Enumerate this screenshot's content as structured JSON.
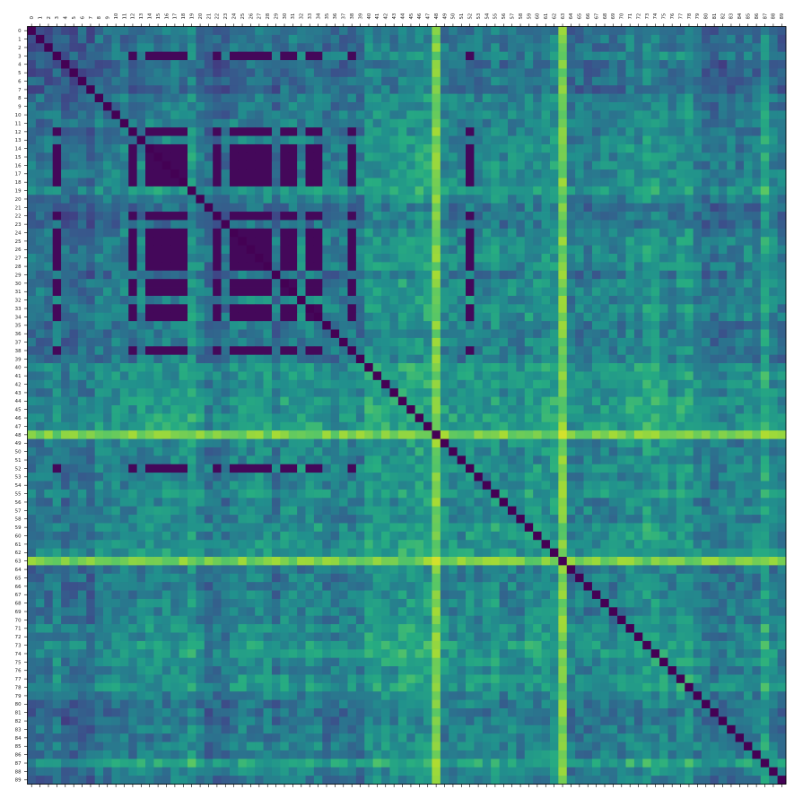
{
  "chart_data": {
    "type": "heatmap",
    "title": "",
    "xlabel": "",
    "ylabel": "",
    "colormap": "viridis",
    "grid": false,
    "legend": "none",
    "n": 90,
    "x_tick_labels": [
      "0",
      "1",
      "2",
      "3",
      "4",
      "5",
      "6",
      "7",
      "8",
      "9",
      "10",
      "11",
      "12",
      "13",
      "14",
      "15",
      "16",
      "17",
      "18",
      "19",
      "20",
      "21",
      "22",
      "23",
      "24",
      "25",
      "26",
      "27",
      "28",
      "29",
      "30",
      "31",
      "32",
      "33",
      "34",
      "35",
      "36",
      "37",
      "38",
      "39",
      "40",
      "41",
      "42",
      "43",
      "44",
      "45",
      "46",
      "47",
      "48",
      "49",
      "50",
      "51",
      "52",
      "53",
      "54",
      "55",
      "56",
      "57",
      "58",
      "59",
      "60",
      "61",
      "62",
      "63",
      "64",
      "65",
      "66",
      "67",
      "68",
      "69",
      "70",
      "71",
      "72",
      "73",
      "74",
      "75",
      "76",
      "77",
      "78",
      "79",
      "80",
      "81",
      "82",
      "83",
      "84",
      "85",
      "86",
      "87",
      "88",
      "89"
    ],
    "y_tick_labels": [
      "0",
      "1",
      "2",
      "3",
      "4",
      "5",
      "6",
      "7",
      "8",
      "9",
      "10",
      "11",
      "12",
      "13",
      "14",
      "15",
      "16",
      "17",
      "18",
      "19",
      "20",
      "21",
      "22",
      "23",
      "24",
      "25",
      "26",
      "27",
      "28",
      "29",
      "30",
      "31",
      "32",
      "33",
      "34",
      "35",
      "36",
      "37",
      "38",
      "39",
      "40",
      "41",
      "42",
      "43",
      "44",
      "45",
      "46",
      "47",
      "48",
      "49",
      "50",
      "51",
      "52",
      "53",
      "54",
      "55",
      "56",
      "57",
      "58",
      "59",
      "60",
      "61",
      "62",
      "63",
      "64",
      "65",
      "66",
      "67",
      "68",
      "69",
      "70",
      "71",
      "72",
      "73",
      "74",
      "75",
      "76",
      "77",
      "78",
      "79",
      "80",
      "81",
      "82",
      "83",
      "84",
      "85",
      "86",
      "87",
      "88",
      "89"
    ],
    "value_range": [
      0,
      1
    ],
    "diagonal": 0,
    "dark_cluster": [
      3,
      12,
      14,
      15,
      16,
      17,
      18,
      22,
      24,
      25,
      26,
      27,
      28,
      30,
      31,
      33,
      34,
      38,
      52
    ],
    "bright_rows": [
      48,
      63
    ],
    "bright_cols": [
      48,
      63
    ],
    "profile": [
      0.3,
      0.32,
      0.32,
      0.4,
      0.26,
      0.28,
      0.3,
      0.25,
      0.4,
      0.38,
      0.42,
      0.42,
      0.4,
      0.45,
      0.48,
      0.48,
      0.48,
      0.48,
      0.48,
      0.6,
      0.44,
      0.28,
      0.32,
      0.28,
      0.45,
      0.48,
      0.48,
      0.48,
      0.48,
      0.32,
      0.48,
      0.48,
      0.45,
      0.48,
      0.48,
      0.4,
      0.38,
      0.4,
      0.4,
      0.38,
      0.6,
      0.58,
      0.55,
      0.52,
      0.62,
      0.6,
      0.65,
      0.66,
      0.92,
      0.5,
      0.48,
      0.45,
      0.55,
      0.48,
      0.48,
      0.6,
      0.45,
      0.52,
      0.42,
      0.58,
      0.52,
      0.55,
      0.62,
      0.82,
      0.38,
      0.42,
      0.4,
      0.42,
      0.45,
      0.42,
      0.45,
      0.55,
      0.52,
      0.62,
      0.6,
      0.55,
      0.48,
      0.58,
      0.6,
      0.42,
      0.35,
      0.33,
      0.32,
      0.4,
      0.35,
      0.45,
      0.42,
      0.7,
      0.44,
      0.36
    ]
  }
}
